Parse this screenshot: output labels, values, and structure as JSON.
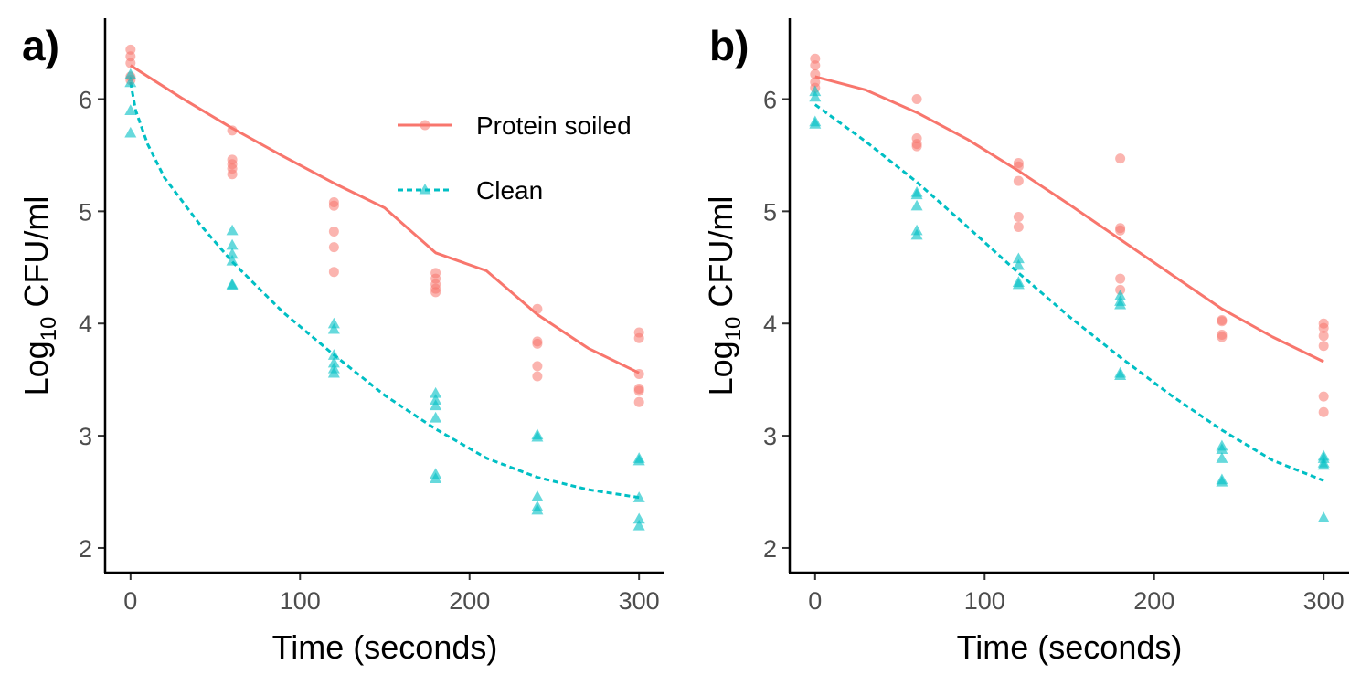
{
  "chart_data": [
    {
      "type": "scatter",
      "panel_label": "a)",
      "xlabel": "Time (seconds)",
      "ylabel_main": "Log",
      "ylabel_sub": "10",
      "ylabel_rest": " CFU/ml",
      "xlim": [
        -15,
        315
      ],
      "ylim": [
        1.78,
        6.72
      ],
      "x_ticks": [
        0,
        100,
        200,
        300
      ],
      "y_ticks": [
        2,
        3,
        4,
        5,
        6
      ],
      "legend_position": "top-right",
      "series": [
        {
          "name": "Protein soiled",
          "color": "#F8766D",
          "marker": "circle",
          "line_style": "solid",
          "points": [
            [
              0,
              6.44
            ],
            [
              0,
              6.38
            ],
            [
              0,
              6.32
            ],
            [
              0,
              6.2
            ],
            [
              0,
              6.17
            ],
            [
              60,
              5.72
            ],
            [
              60,
              5.46
            ],
            [
              60,
              5.42
            ],
            [
              60,
              5.38
            ],
            [
              60,
              5.33
            ],
            [
              120,
              5.08
            ],
            [
              120,
              5.05
            ],
            [
              120,
              4.82
            ],
            [
              120,
              4.68
            ],
            [
              120,
              4.46
            ],
            [
              180,
              4.45
            ],
            [
              180,
              4.4
            ],
            [
              180,
              4.35
            ],
            [
              180,
              4.31
            ],
            [
              180,
              4.28
            ],
            [
              240,
              4.13
            ],
            [
              240,
              3.84
            ],
            [
              240,
              3.82
            ],
            [
              240,
              3.62
            ],
            [
              240,
              3.53
            ],
            [
              300,
              3.92
            ],
            [
              300,
              3.87
            ],
            [
              300,
              3.55
            ],
            [
              300,
              3.42
            ],
            [
              300,
              3.4
            ],
            [
              300,
              3.3
            ]
          ],
          "fit": [
            [
              0,
              6.3
            ],
            [
              30,
              6.01
            ],
            [
              60,
              5.74
            ],
            [
              90,
              5.49
            ],
            [
              120,
              5.25
            ],
            [
              150,
              5.03
            ],
            [
              180,
              4.63
            ],
            [
              210,
              4.47
            ],
            [
              240,
              4.08
            ],
            [
              270,
              3.78
            ],
            [
              300,
              3.56
            ]
          ]
        },
        {
          "name": "Clean",
          "color": "#00BFC4",
          "marker": "triangle",
          "line_style": "dashed",
          "points": [
            [
              0,
              6.22
            ],
            [
              0,
              6.15
            ],
            [
              0,
              5.9
            ],
            [
              0,
              5.7
            ],
            [
              60,
              4.83
            ],
            [
              60,
              4.7
            ],
            [
              60,
              4.62
            ],
            [
              60,
              4.56
            ],
            [
              60,
              4.35
            ],
            [
              60,
              4.34
            ],
            [
              120,
              4.0
            ],
            [
              120,
              3.95
            ],
            [
              120,
              3.72
            ],
            [
              120,
              3.65
            ],
            [
              120,
              3.6
            ],
            [
              120,
              3.56
            ],
            [
              180,
              3.38
            ],
            [
              180,
              3.32
            ],
            [
              180,
              3.27
            ],
            [
              180,
              3.16
            ],
            [
              180,
              2.66
            ],
            [
              180,
              2.62
            ],
            [
              240,
              3.01
            ],
            [
              240,
              2.99
            ],
            [
              240,
              2.46
            ],
            [
              240,
              2.37
            ],
            [
              240,
              2.34
            ],
            [
              300,
              2.8
            ],
            [
              300,
              2.78
            ],
            [
              300,
              2.45
            ],
            [
              300,
              2.26
            ],
            [
              300,
              2.2
            ]
          ],
          "fit": [
            [
              0,
              6.15
            ],
            [
              3,
              5.9
            ],
            [
              10,
              5.6
            ],
            [
              20,
              5.3
            ],
            [
              40,
              4.9
            ],
            [
              60,
              4.55
            ],
            [
              90,
              4.1
            ],
            [
              120,
              3.72
            ],
            [
              150,
              3.36
            ],
            [
              180,
              3.06
            ],
            [
              210,
              2.8
            ],
            [
              240,
              2.63
            ],
            [
              270,
              2.52
            ],
            [
              300,
              2.45
            ]
          ]
        }
      ]
    },
    {
      "type": "scatter",
      "panel_label": "b)",
      "xlabel": "Time (seconds)",
      "ylabel_main": "Log",
      "ylabel_sub": "10",
      "ylabel_rest": " CFU/ml",
      "xlim": [
        -15,
        315
      ],
      "ylim": [
        1.78,
        6.72
      ],
      "x_ticks": [
        0,
        100,
        200,
        300
      ],
      "y_ticks": [
        2,
        3,
        4,
        5,
        6
      ],
      "series": [
        {
          "name": "Protein soiled",
          "color": "#F8766D",
          "marker": "circle",
          "line_style": "solid",
          "points": [
            [
              0,
              6.36
            ],
            [
              0,
              6.3
            ],
            [
              0,
              6.22
            ],
            [
              0,
              6.15
            ],
            [
              0,
              6.1
            ],
            [
              60,
              6.0
            ],
            [
              60,
              5.65
            ],
            [
              60,
              5.6
            ],
            [
              60,
              5.58
            ],
            [
              120,
              5.43
            ],
            [
              120,
              5.4
            ],
            [
              120,
              5.27
            ],
            [
              120,
              4.95
            ],
            [
              120,
              4.86
            ],
            [
              180,
              5.47
            ],
            [
              180,
              4.85
            ],
            [
              180,
              4.83
            ],
            [
              180,
              4.4
            ],
            [
              180,
              4.3
            ],
            [
              240,
              4.03
            ],
            [
              240,
              4.02
            ],
            [
              240,
              3.9
            ],
            [
              240,
              3.88
            ],
            [
              300,
              4.0
            ],
            [
              300,
              3.96
            ],
            [
              300,
              3.89
            ],
            [
              300,
              3.8
            ],
            [
              300,
              3.35
            ],
            [
              300,
              3.21
            ]
          ],
          "fit": [
            [
              0,
              6.2
            ],
            [
              30,
              6.08
            ],
            [
              60,
              5.88
            ],
            [
              90,
              5.64
            ],
            [
              120,
              5.36
            ],
            [
              150,
              5.06
            ],
            [
              180,
              4.75
            ],
            [
              210,
              4.44
            ],
            [
              240,
              4.13
            ],
            [
              270,
              3.88
            ],
            [
              300,
              3.66
            ]
          ]
        },
        {
          "name": "Clean",
          "color": "#00BFC4",
          "marker": "triangle",
          "line_style": "dashed",
          "points": [
            [
              0,
              6.07
            ],
            [
              0,
              6.02
            ],
            [
              0,
              5.8
            ],
            [
              0,
              5.78
            ],
            [
              60,
              5.17
            ],
            [
              60,
              5.15
            ],
            [
              60,
              5.05
            ],
            [
              60,
              4.83
            ],
            [
              60,
              4.79
            ],
            [
              120,
              4.58
            ],
            [
              120,
              4.52
            ],
            [
              120,
              4.37
            ],
            [
              120,
              4.35
            ],
            [
              180,
              4.25
            ],
            [
              180,
              4.2
            ],
            [
              180,
              4.17
            ],
            [
              180,
              3.56
            ],
            [
              180,
              3.54
            ],
            [
              240,
              2.91
            ],
            [
              240,
              2.88
            ],
            [
              240,
              2.8
            ],
            [
              240,
              2.61
            ],
            [
              240,
              2.59
            ],
            [
              300,
              2.82
            ],
            [
              300,
              2.8
            ],
            [
              300,
              2.76
            ],
            [
              300,
              2.74
            ],
            [
              300,
              2.27
            ]
          ],
          "fit": [
            [
              0,
              5.95
            ],
            [
              30,
              5.62
            ],
            [
              60,
              5.26
            ],
            [
              90,
              4.86
            ],
            [
              120,
              4.45
            ],
            [
              150,
              4.06
            ],
            [
              180,
              3.7
            ],
            [
              210,
              3.36
            ],
            [
              240,
              3.05
            ],
            [
              270,
              2.78
            ],
            [
              300,
              2.6
            ]
          ]
        }
      ]
    }
  ],
  "legend": {
    "items": [
      {
        "label": "Protein soiled",
        "color": "#F8766D",
        "marker": "circle",
        "line_style": "solid"
      },
      {
        "label": "Clean",
        "color": "#00BFC4",
        "marker": "triangle",
        "line_style": "dashed"
      }
    ]
  }
}
